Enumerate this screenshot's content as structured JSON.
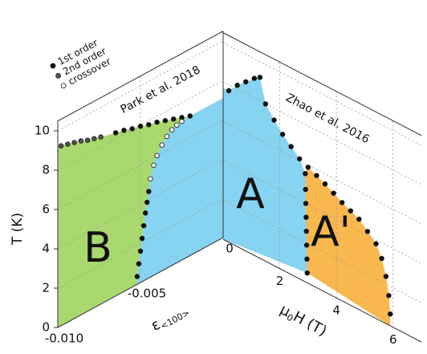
{
  "chart_data": [
    {
      "type": "scatter",
      "panel": "left",
      "ylabel": "T (K)",
      "xlabel": {
        "main": "ε",
        "sub": "<100>"
      },
      "annotation": "Park et al. 2018",
      "region_label": "B",
      "xlim": [
        -0.01,
        0
      ],
      "ylim": [
        0,
        10.5
      ],
      "xticks": [
        {
          "value": -0.01,
          "label": "-0.010"
        },
        -0.005,
        0
      ],
      "yticks": [
        0,
        2,
        4,
        6,
        8,
        10
      ],
      "grid": true,
      "legend": "top-left",
      "series": [
        {
          "name": "1st order",
          "color": "#111111",
          "x": [
            -0.0052,
            -0.0051,
            -0.005,
            -0.0049,
            -0.0048,
            -0.0047,
            -0.0046,
            -0.0045,
            -0.0065,
            -0.006,
            -0.0055,
            -0.005,
            -0.0045,
            -0.004,
            -0.0035,
            -0.003,
            -0.0025,
            -0.002
          ],
          "values": [
            0.4,
            1.0,
            1.6,
            2.2,
            2.8,
            3.4,
            3.9,
            4.4,
            8.3,
            8.2,
            8.05,
            7.95,
            7.8,
            7.7,
            7.55,
            7.4,
            7.25,
            7.1
          ]
        },
        {
          "name": "2nd order",
          "color": "#555555",
          "x": [
            -0.0098,
            -0.0094,
            -0.009,
            -0.0086,
            -0.0082,
            -0.0078,
            -0.0074
          ],
          "values": [
            9.15,
            9.05,
            8.95,
            8.85,
            8.7,
            8.6,
            8.5
          ]
        },
        {
          "name": "crossover",
          "color": "#ffffff",
          "x": [
            -0.0044,
            -0.0042,
            -0.004,
            -0.0037,
            -0.0034,
            -0.0031,
            -0.0028,
            -0.0025
          ],
          "values": [
            5.0,
            5.6,
            6.0,
            6.4,
            6.7,
            6.9,
            7.0,
            7.05
          ]
        }
      ]
    },
    {
      "type": "scatter",
      "panel": "right",
      "xlabel": {
        "main": "μ",
        "sub": "0",
        "rest": "H (T)"
      },
      "annotation": "Zhao et al. 2016",
      "region_labels": [
        "A",
        "A'"
      ],
      "xlim": [
        0,
        7
      ],
      "ylim": [
        0,
        10.5
      ],
      "xticks": [
        2,
        4,
        6
      ],
      "yticks": [
        0,
        2,
        4,
        6,
        8,
        10
      ],
      "grid": true,
      "series": [
        {
          "color": "#111111",
          "x": [
            0.2,
            0.5,
            0.8,
            1.1,
            1.3,
            1.5,
            1.8,
            2.1,
            2.4,
            2.7,
            3.0,
            3.3,
            3.6,
            3.9,
            4.2,
            4.5,
            4.8,
            5.1,
            5.4,
            5.6,
            5.75,
            5.85,
            5.9
          ],
          "values": [
            7.7,
            8.2,
            8.6,
            9.0,
            9.2,
            8.0,
            7.4,
            6.9,
            6.5,
            6.1,
            5.9,
            5.7,
            5.5,
            5.25,
            5.0,
            4.8,
            4.6,
            4.2,
            3.8,
            3.2,
            2.4,
            1.5,
            0.6
          ]
        },
        {
          "color": "#111111",
          "x": [
            2.97,
            2.96,
            2.95,
            2.94,
            2.93,
            2.92,
            2.91,
            2.9
          ],
          "values": [
            0.5,
            1.2,
            1.9,
            2.6,
            3.3,
            4.0,
            4.7,
            5.5
          ]
        }
      ]
    }
  ]
}
